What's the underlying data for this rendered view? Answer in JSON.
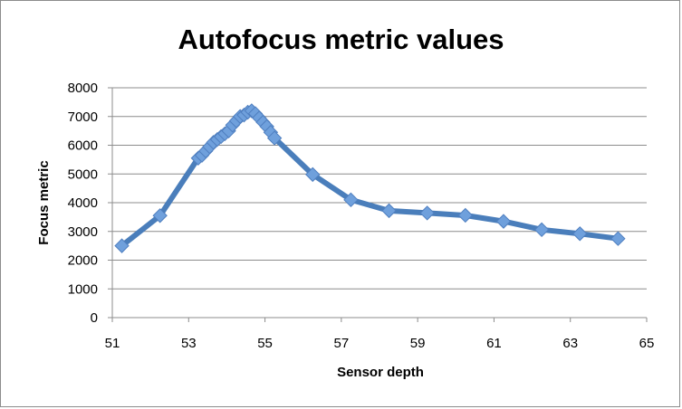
{
  "chart_data": {
    "type": "line",
    "title": "Autofocus metric values",
    "xlabel": "Sensor depth",
    "ylabel": "Focus metric",
    "xlim": [
      51,
      65
    ],
    "ylim": [
      0,
      8000
    ],
    "x_ticks": [
      "51",
      "53",
      "55",
      "57",
      "59",
      "61",
      "63",
      "65"
    ],
    "y_ticks": [
      "0",
      "1000",
      "2000",
      "3000",
      "4000",
      "5000",
      "6000",
      "7000",
      "8000"
    ],
    "grid": "horizontal",
    "legend": "none",
    "line_color": "#4a7ebb",
    "marker_color": "#6fa0dc",
    "marker": "diamond",
    "series": [
      {
        "x": [
          51.25,
          52.25,
          53.25,
          53.35,
          53.45,
          53.55,
          53.65,
          53.75,
          53.85,
          53.95,
          54.05,
          54.15,
          54.25,
          54.35,
          54.45,
          54.55,
          54.65,
          54.75,
          54.85,
          54.95,
          55.05,
          55.15,
          55.25,
          56.25,
          57.25,
          58.25,
          59.25,
          60.25,
          61.25,
          62.25,
          63.25,
          64.25
        ],
        "y": [
          2500,
          3550,
          5550,
          5650,
          5800,
          5950,
          6100,
          6200,
          6300,
          6400,
          6500,
          6700,
          6850,
          7000,
          7050,
          7150,
          7200,
          7100,
          6950,
          6800,
          6650,
          6450,
          6250,
          4980,
          4100,
          3720,
          3640,
          3560,
          3350,
          3060,
          2920,
          2750
        ]
      }
    ]
  }
}
